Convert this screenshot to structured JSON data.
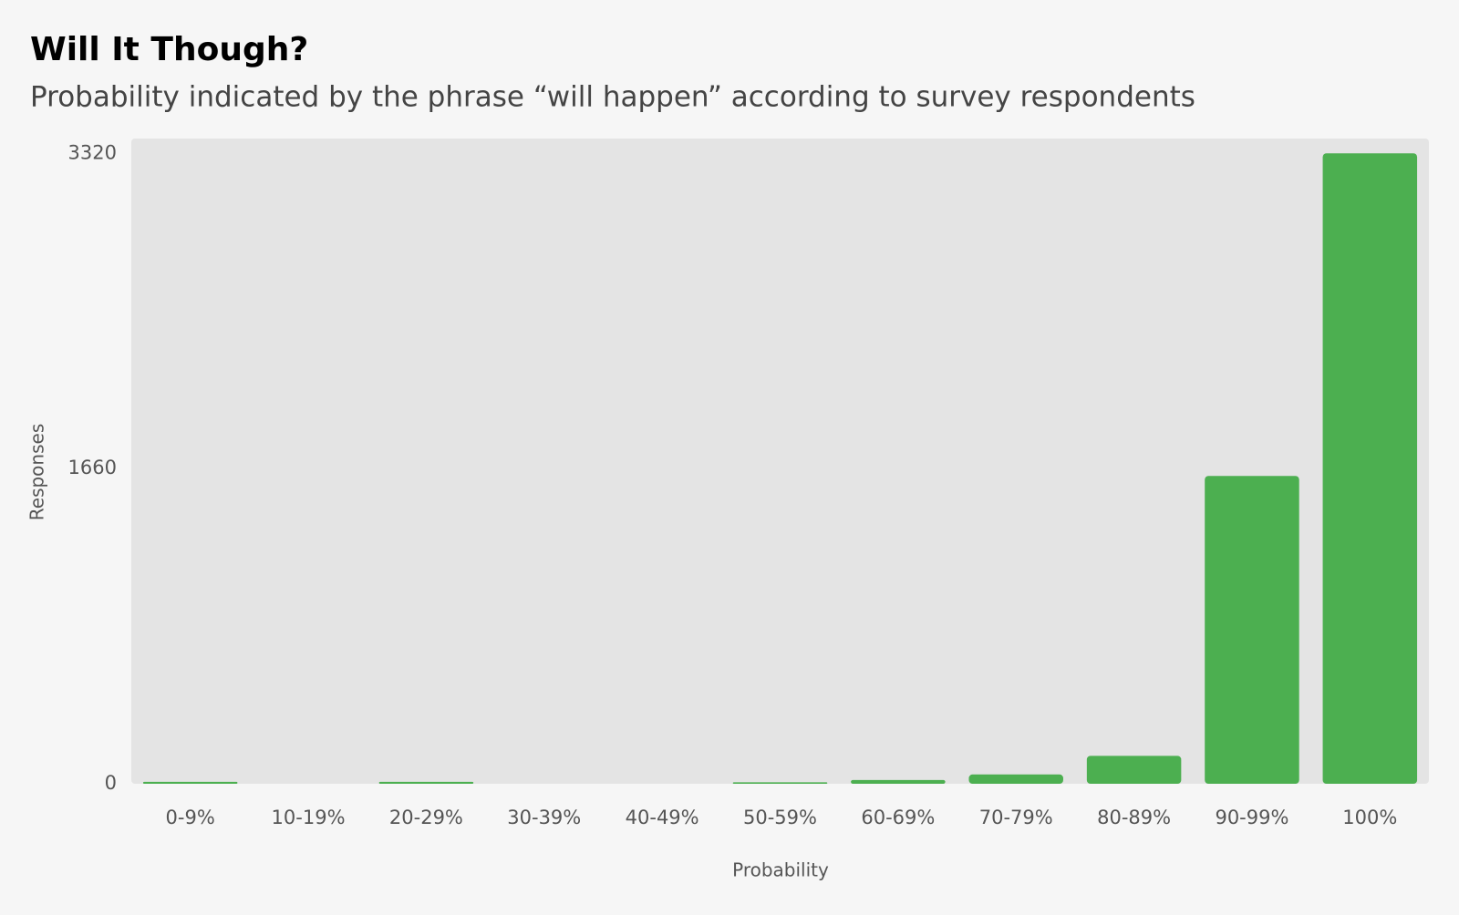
{
  "chart_data": {
    "type": "bar",
    "title": "Will It Though?",
    "subtitle": "Probability indicated by the phrase “will happen” according to survey respondents",
    "x_label": "Probability",
    "y_label": "Responses",
    "categories": [
      "0-9%",
      "10-19%",
      "20-29%",
      "30-39%",
      "40-49%",
      "50-59%",
      "60-69%",
      "70-79%",
      "80-89%",
      "90-99%",
      "100%"
    ],
    "values": [
      10,
      0,
      10,
      0,
      0,
      8,
      20,
      49,
      147,
      1621,
      3320
    ],
    "color": "#4caf50",
    "ylim": [
      0,
      3398
    ],
    "yticks": [
      0,
      1660,
      3320
    ],
    "grid": false
  }
}
